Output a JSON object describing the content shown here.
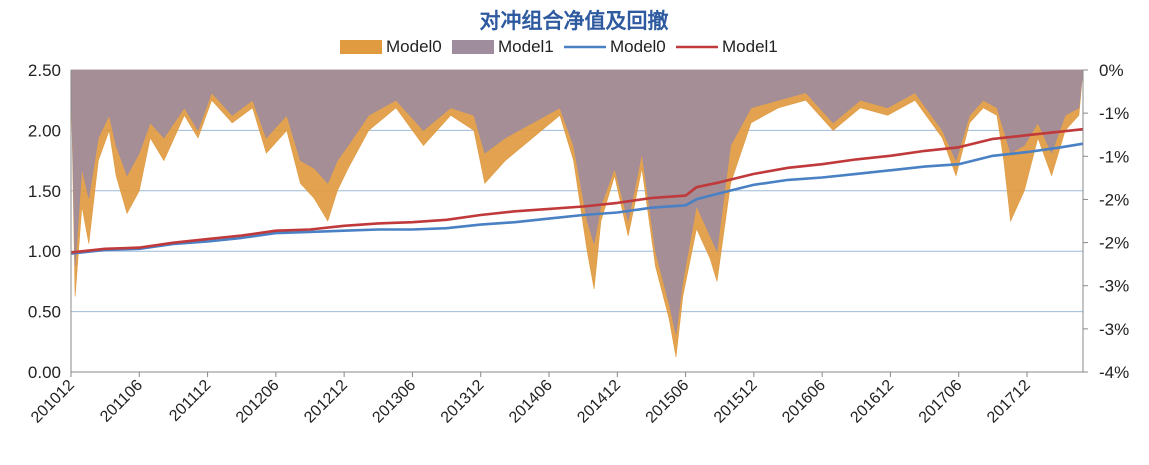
{
  "chart_data": {
    "type": "line",
    "title": "对冲组合净值及回撤",
    "legend": [
      {
        "label": "Model0",
        "kind": "area",
        "color": "#e09a40"
      },
      {
        "label": "Model1",
        "kind": "area",
        "color": "#9f8c9c"
      },
      {
        "label": "Model0",
        "kind": "line",
        "color": "#4a80c4"
      },
      {
        "label": "Model1",
        "kind": "line",
        "color": "#c0393b"
      }
    ],
    "legend_position": "top",
    "grid": true,
    "colors": {
      "gridline": "#9dbad8",
      "axis": "#888888",
      "title": "#2e5aa0"
    },
    "y_left": {
      "range": [
        0,
        2.5
      ],
      "ticks": [
        0.0,
        0.5,
        1.0,
        1.5,
        2.0,
        2.5
      ],
      "tick_labels": [
        "0.00",
        "0.50",
        "1.00",
        "1.50",
        "2.00",
        "2.50"
      ]
    },
    "y_right": {
      "range": [
        -4,
        0
      ],
      "tick_labels": [
        "0%",
        "-1%",
        "-1%",
        "-2%",
        "-2%",
        "-3%",
        "-3%",
        "-4%"
      ]
    },
    "x_tick_labels": [
      "201012",
      "201106",
      "201112",
      "201206",
      "201212",
      "201306",
      "201312",
      "201406",
      "201412",
      "201506",
      "201512",
      "201606",
      "201612",
      "201706",
      "201712"
    ],
    "x_range": [
      2010.92,
      2018.33
    ],
    "x_ticks": [
      2010.92,
      2011.42,
      2011.92,
      2012.42,
      2012.92,
      2013.42,
      2013.92,
      2014.42,
      2014.92,
      2015.42,
      2015.92,
      2016.42,
      2016.92,
      2017.42,
      2017.92
    ],
    "series": [
      {
        "name": "Model0",
        "kind": "line",
        "axis": "left",
        "color": "#4a80c4",
        "x": [
          2010.92,
          2011.17,
          2011.42,
          2011.67,
          2011.92,
          2012.17,
          2012.42,
          2012.67,
          2012.92,
          2013.17,
          2013.42,
          2013.67,
          2013.92,
          2014.17,
          2014.42,
          2014.67,
          2014.92,
          2015.17,
          2015.42,
          2015.5,
          2015.67,
          2015.92,
          2016.17,
          2016.42,
          2016.67,
          2016.92,
          2017.17,
          2017.42,
          2017.67,
          2017.92,
          2018.17,
          2018.33
        ],
        "values": [
          0.98,
          1.01,
          1.02,
          1.06,
          1.08,
          1.11,
          1.15,
          1.16,
          1.17,
          1.18,
          1.18,
          1.19,
          1.22,
          1.24,
          1.27,
          1.3,
          1.32,
          1.36,
          1.38,
          1.43,
          1.48,
          1.55,
          1.59,
          1.61,
          1.64,
          1.67,
          1.7,
          1.72,
          1.79,
          1.82,
          1.86,
          1.89
        ]
      },
      {
        "name": "Model1",
        "kind": "line",
        "axis": "left",
        "color": "#c0393b",
        "x": [
          2010.92,
          2011.17,
          2011.42,
          2011.67,
          2011.92,
          2012.17,
          2012.42,
          2012.67,
          2012.92,
          2013.17,
          2013.42,
          2013.67,
          2013.92,
          2014.17,
          2014.42,
          2014.67,
          2014.92,
          2015.17,
          2015.42,
          2015.5,
          2015.67,
          2015.92,
          2016.17,
          2016.42,
          2016.67,
          2016.92,
          2017.17,
          2017.42,
          2017.67,
          2017.92,
          2018.17,
          2018.33
        ],
        "values": [
          0.99,
          1.02,
          1.03,
          1.07,
          1.1,
          1.13,
          1.17,
          1.18,
          1.21,
          1.23,
          1.24,
          1.26,
          1.3,
          1.33,
          1.35,
          1.37,
          1.4,
          1.44,
          1.46,
          1.53,
          1.57,
          1.64,
          1.69,
          1.72,
          1.76,
          1.79,
          1.83,
          1.86,
          1.93,
          1.96,
          1.99,
          2.01
        ]
      },
      {
        "name": "Model0",
        "kind": "area",
        "axis": "right",
        "color": "#e09a40",
        "x": [
          2010.92,
          2010.95,
          2011.0,
          2011.05,
          2011.12,
          2011.2,
          2011.25,
          2011.33,
          2011.42,
          2011.5,
          2011.6,
          2011.75,
          2011.85,
          2011.95,
          2012.1,
          2012.25,
          2012.35,
          2012.5,
          2012.6,
          2012.7,
          2012.8,
          2012.87,
          2012.95,
          2013.1,
          2013.3,
          2013.5,
          2013.7,
          2013.87,
          2013.95,
          2014.1,
          2014.3,
          2014.5,
          2014.6,
          2014.7,
          2014.75,
          2014.8,
          2014.9,
          2015.0,
          2015.1,
          2015.2,
          2015.3,
          2015.35,
          2015.4,
          2015.5,
          2015.6,
          2015.65,
          2015.75,
          2015.9,
          2016.1,
          2016.3,
          2016.5,
          2016.7,
          2016.9,
          2017.1,
          2017.3,
          2017.4,
          2017.5,
          2017.6,
          2017.7,
          2017.75,
          2017.8,
          2017.9,
          2018.0,
          2018.1,
          2018.2,
          2018.3,
          2018.33
        ],
        "values": [
          0,
          -3.0,
          -1.8,
          -2.3,
          -1.2,
          -0.8,
          -1.4,
          -1.9,
          -1.6,
          -0.9,
          -1.2,
          -0.6,
          -0.9,
          -0.4,
          -0.7,
          -0.5,
          -1.1,
          -0.8,
          -1.5,
          -1.7,
          -2.0,
          -1.6,
          -1.3,
          -0.8,
          -0.5,
          -1.0,
          -0.6,
          -0.8,
          -1.5,
          -1.2,
          -0.9,
          -0.6,
          -1.2,
          -2.4,
          -2.9,
          -2.0,
          -1.4,
          -2.2,
          -1.3,
          -2.6,
          -3.3,
          -3.8,
          -3.0,
          -2.1,
          -2.5,
          -2.8,
          -1.5,
          -0.7,
          -0.5,
          -0.4,
          -0.8,
          -0.5,
          -0.6,
          -0.4,
          -0.9,
          -1.4,
          -0.7,
          -0.5,
          -0.6,
          -1.2,
          -2.0,
          -1.6,
          -0.9,
          -1.4,
          -0.8,
          -0.6,
          0
        ]
      },
      {
        "name": "Model1",
        "kind": "area",
        "axis": "right",
        "color": "#9f8c9c",
        "x": [
          2010.92,
          2010.95,
          2011.0,
          2011.05,
          2011.12,
          2011.2,
          2011.25,
          2011.33,
          2011.42,
          2011.5,
          2011.6,
          2011.75,
          2011.85,
          2011.95,
          2012.1,
          2012.25,
          2012.35,
          2012.5,
          2012.6,
          2012.7,
          2012.8,
          2012.87,
          2012.95,
          2013.1,
          2013.3,
          2013.5,
          2013.7,
          2013.87,
          2013.95,
          2014.1,
          2014.3,
          2014.5,
          2014.6,
          2014.7,
          2014.75,
          2014.8,
          2014.9,
          2015.0,
          2015.1,
          2015.2,
          2015.3,
          2015.35,
          2015.4,
          2015.5,
          2015.6,
          2015.65,
          2015.75,
          2015.9,
          2016.1,
          2016.3,
          2016.5,
          2016.7,
          2016.9,
          2017.1,
          2017.3,
          2017.4,
          2017.5,
          2017.6,
          2017.7,
          2017.75,
          2017.8,
          2017.9,
          2018.0,
          2018.1,
          2018.2,
          2018.3,
          2018.33
        ],
        "values": [
          0,
          -2.6,
          -1.3,
          -1.7,
          -0.9,
          -0.6,
          -1.0,
          -1.4,
          -1.1,
          -0.7,
          -0.9,
          -0.5,
          -0.8,
          -0.3,
          -0.6,
          -0.4,
          -0.9,
          -0.6,
          -1.2,
          -1.3,
          -1.5,
          -1.2,
          -1.0,
          -0.6,
          -0.4,
          -0.8,
          -0.5,
          -0.6,
          -1.1,
          -0.9,
          -0.7,
          -0.5,
          -1.0,
          -2.0,
          -2.3,
          -1.8,
          -1.3,
          -2.0,
          -1.1,
          -2.4,
          -3.1,
          -3.5,
          -2.8,
          -1.8,
          -2.2,
          -2.4,
          -1.0,
          -0.5,
          -0.4,
          -0.3,
          -0.7,
          -0.4,
          -0.5,
          -0.3,
          -0.8,
          -1.2,
          -0.6,
          -0.4,
          -0.5,
          -0.8,
          -1.1,
          -1.0,
          -0.7,
          -1.1,
          -0.6,
          -0.5,
          0
        ]
      }
    ]
  }
}
